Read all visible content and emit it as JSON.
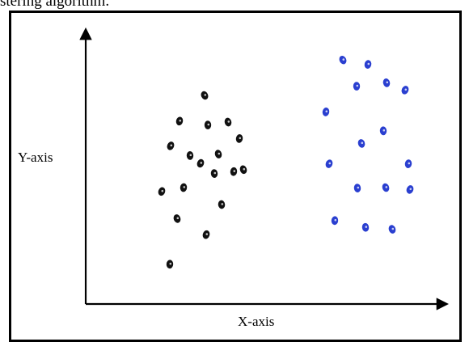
{
  "caption": "stering algorithm.",
  "colors": {
    "cluster_1": "#111111",
    "cluster_2": "#2a3fd0",
    "axes": "#000000"
  },
  "chart_data": {
    "type": "scatter",
    "xlabel": "X-axis",
    "ylabel": "Y-axis",
    "grid": false,
    "legend": "none",
    "series": [
      {
        "color": "#111111",
        "points": [
          {
            "x": 1.47,
            "y": 4.3
          },
          {
            "x": 1.16,
            "y": 3.77
          },
          {
            "x": 1.51,
            "y": 3.69
          },
          {
            "x": 1.76,
            "y": 3.75
          },
          {
            "x": 1.05,
            "y": 3.26
          },
          {
            "x": 1.9,
            "y": 3.41
          },
          {
            "x": 1.29,
            "y": 3.06
          },
          {
            "x": 1.64,
            "y": 3.09
          },
          {
            "x": 1.42,
            "y": 2.9
          },
          {
            "x": 1.83,
            "y": 2.73
          },
          {
            "x": 1.59,
            "y": 2.69
          },
          {
            "x": 1.95,
            "y": 2.77
          },
          {
            "x": 0.94,
            "y": 2.32
          },
          {
            "x": 1.21,
            "y": 2.4
          },
          {
            "x": 1.68,
            "y": 2.05
          },
          {
            "x": 1.13,
            "y": 1.76
          },
          {
            "x": 1.49,
            "y": 1.43
          },
          {
            "x": 1.04,
            "y": 0.82
          }
        ]
      },
      {
        "color": "#2a3fd0",
        "points": [
          {
            "x": 3.18,
            "y": 5.03
          },
          {
            "x": 3.49,
            "y": 4.94
          },
          {
            "x": 3.35,
            "y": 4.49
          },
          {
            "x": 3.72,
            "y": 4.56
          },
          {
            "x": 3.95,
            "y": 4.41
          },
          {
            "x": 2.97,
            "y": 3.96
          },
          {
            "x": 3.68,
            "y": 3.57
          },
          {
            "x": 3.41,
            "y": 3.31
          },
          {
            "x": 3.01,
            "y": 2.89
          },
          {
            "x": 3.99,
            "y": 2.89
          },
          {
            "x": 3.36,
            "y": 2.39
          },
          {
            "x": 3.71,
            "y": 2.4
          },
          {
            "x": 4.01,
            "y": 2.36
          },
          {
            "x": 3.08,
            "y": 1.72
          },
          {
            "x": 3.46,
            "y": 1.58
          },
          {
            "x": 3.79,
            "y": 1.54
          }
        ]
      }
    ],
    "xlim": [
      0,
      4.5
    ],
    "ylim": [
      0,
      6
    ]
  }
}
